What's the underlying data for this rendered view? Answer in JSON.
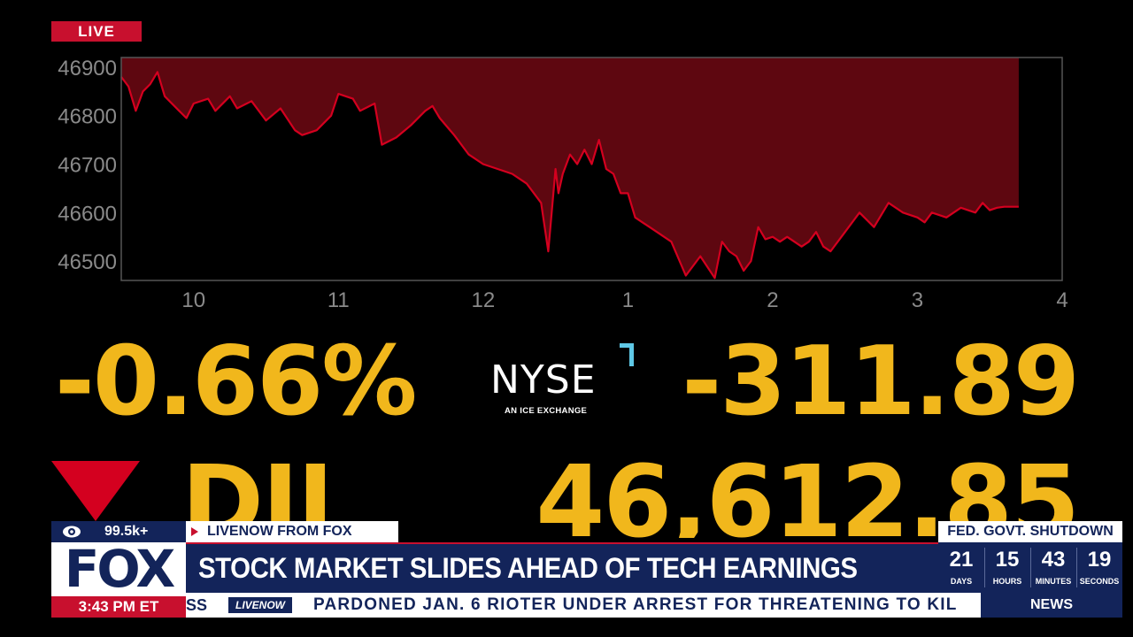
{
  "live_label": "LIVE",
  "chart_data": {
    "type": "area",
    "title": "",
    "xlabel": "",
    "ylabel": "",
    "x_ticks": [
      "10",
      "11",
      "12",
      "1",
      "2",
      "3",
      "4"
    ],
    "y_ticks": [
      46900,
      46800,
      46700,
      46600,
      46500
    ],
    "xlim": [
      9.5,
      16
    ],
    "ylim": [
      46460,
      46920
    ],
    "series": [
      {
        "color": "#d4001f",
        "fill": "#5e0710",
        "x": [
          9.5,
          9.55,
          9.6,
          9.65,
          9.7,
          9.75,
          9.8,
          9.9,
          9.95,
          10.0,
          10.1,
          10.15,
          10.25,
          10.3,
          10.4,
          10.5,
          10.6,
          10.7,
          10.75,
          10.85,
          10.95,
          11.0,
          11.1,
          11.15,
          11.25,
          11.3,
          11.4,
          11.5,
          11.6,
          11.65,
          11.7,
          11.8,
          11.85,
          11.9,
          12.0,
          12.1,
          12.2,
          12.3,
          12.4,
          12.45,
          12.5,
          12.52,
          12.55,
          12.6,
          12.65,
          12.7,
          12.75,
          12.8,
          12.85,
          12.9,
          12.95,
          13.0,
          13.05,
          13.1,
          13.15,
          13.2,
          13.3,
          13.4,
          13.5,
          13.6,
          13.65,
          13.7,
          13.75,
          13.8,
          13.85,
          13.9,
          13.95,
          14.0,
          14.05,
          14.1,
          14.2,
          14.25,
          14.3,
          14.35,
          14.4,
          14.5,
          14.6,
          14.7,
          14.8,
          14.9,
          15.0,
          15.05,
          15.1,
          15.2,
          15.3,
          15.4,
          15.45,
          15.5,
          15.55,
          15.6,
          15.7
        ],
        "y": [
          46880,
          46860,
          46810,
          46850,
          46865,
          46890,
          46840,
          46810,
          46795,
          46825,
          46835,
          46810,
          46840,
          46815,
          46830,
          46790,
          46815,
          46770,
          46760,
          46770,
          46800,
          46845,
          46835,
          46810,
          46825,
          46740,
          46755,
          46780,
          46810,
          46820,
          46795,
          46760,
          46740,
          46720,
          46700,
          46690,
          46680,
          46660,
          46620,
          46520,
          46690,
          46640,
          46680,
          46720,
          46700,
          46730,
          46700,
          46750,
          46690,
          46680,
          46640,
          46640,
          46590,
          46580,
          46570,
          46560,
          46540,
          46470,
          46510,
          46465,
          46540,
          46520,
          46510,
          46480,
          46500,
          46570,
          46545,
          46550,
          46540,
          46550,
          46530,
          46540,
          46560,
          46530,
          46520,
          46560,
          46600,
          46570,
          46620,
          46600,
          46590,
          46580,
          46600,
          46590,
          46610,
          46600,
          46620,
          46605,
          46610,
          46612,
          46612
        ]
      }
    ]
  },
  "stats": {
    "percent_change": "-0.66%",
    "points_change": "-311.89",
    "index_symbol": "DJI",
    "index_value": "46,612.85",
    "exchange_logo": "NYSE",
    "exchange_sub": "AN ICE EXCHANGE",
    "direction": "down"
  },
  "lower_third": {
    "view_count": "99.5k+",
    "network_logo": "FOX",
    "time": "3:43 PM ET",
    "source": "LIVENOW FROM FOX",
    "headline": "STOCK MARKET SLIDES AHEAD OF TECH EARNINGS",
    "countdown_title": "FED. GOVT. SHUTDOWN",
    "countdown": [
      {
        "value": "21",
        "unit": "DAYS"
      },
      {
        "value": "15",
        "unit": "HOURS"
      },
      {
        "value": "43",
        "unit": "MINUTES"
      },
      {
        "value": "19",
        "unit": "SECONDS"
      }
    ],
    "ticker_fragment": "SS",
    "ticker_logo": "LIVENOW",
    "ticker_text": "PARDONED JAN. 6 RIOTER UNDER ARREST FOR THREATENING TO KIL",
    "news_tab": "NEWS"
  },
  "colors": {
    "fox_navy": "#13245a",
    "fox_red": "#c8102e",
    "ticker_yellow": "#f1b71c",
    "nyse_accent": "#5fc8e6"
  }
}
